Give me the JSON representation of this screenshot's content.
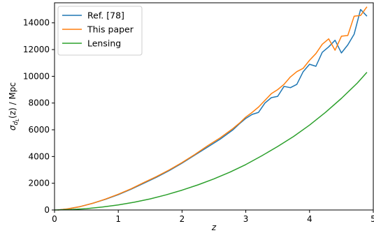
{
  "chart_data": {
    "type": "line",
    "title": "",
    "xlabel": "z",
    "ylabel_main": "σ",
    "ylabel_sub": "d",
    "ylabel_subsub": "L",
    "ylabel_suffix": "(z) / Mpc",
    "xlim": [
      0,
      5
    ],
    "ylim": [
      0,
      15500
    ],
    "xticks": [
      0,
      1,
      2,
      3,
      4,
      5
    ],
    "yticks": [
      0,
      2000,
      4000,
      6000,
      8000,
      10000,
      12000,
      14000
    ],
    "grid": false,
    "legend_position": "top-left",
    "series": [
      {
        "name": "Ref. [78]",
        "color": "#1f77b4",
        "x": [
          0.05,
          0.2,
          0.4,
          0.6,
          0.8,
          1.0,
          1.2,
          1.4,
          1.6,
          1.8,
          2.0,
          2.2,
          2.4,
          2.6,
          2.8,
          2.9,
          3.0,
          3.1,
          3.2,
          3.3,
          3.4,
          3.5,
          3.6,
          3.7,
          3.8,
          3.9,
          4.0,
          4.1,
          4.2,
          4.3,
          4.4,
          4.5,
          4.6,
          4.7,
          4.8,
          4.9
        ],
        "y": [
          0,
          80,
          250,
          500,
          800,
          1150,
          1550,
          2000,
          2450,
          2950,
          3500,
          4100,
          4700,
          5300,
          6000,
          6450,
          6850,
          7150,
          7300,
          8000,
          8400,
          8500,
          9250,
          9150,
          9400,
          10350,
          10900,
          10750,
          11800,
          12200,
          12700,
          11750,
          12350,
          13150,
          15000,
          14500
        ]
      },
      {
        "name": "This paper",
        "color": "#ff7f0e",
        "x": [
          0.05,
          0.2,
          0.4,
          0.6,
          0.8,
          1.0,
          1.2,
          1.4,
          1.6,
          1.8,
          2.0,
          2.2,
          2.4,
          2.6,
          2.8,
          2.9,
          3.0,
          3.1,
          3.2,
          3.3,
          3.4,
          3.5,
          3.6,
          3.7,
          3.8,
          3.9,
          4.0,
          4.1,
          4.2,
          4.3,
          4.4,
          4.5,
          4.6,
          4.7,
          4.8,
          4.9
        ],
        "y": [
          0,
          80,
          250,
          500,
          820,
          1180,
          1580,
          2050,
          2500,
          3000,
          3550,
          4150,
          4800,
          5400,
          6100,
          6500,
          6950,
          7300,
          7700,
          8200,
          8700,
          9000,
          9400,
          9950,
          10350,
          10600,
          11200,
          11700,
          12400,
          12800,
          11950,
          13000,
          13050,
          14500,
          14550,
          15200
        ]
      },
      {
        "name": "Lensing",
        "color": "#2ca02c",
        "x": [
          0,
          0.25,
          0.5,
          0.75,
          1.0,
          1.25,
          1.5,
          1.75,
          2.0,
          2.25,
          2.5,
          2.75,
          3.0,
          3.25,
          3.5,
          3.75,
          4.0,
          4.25,
          4.5,
          4.75,
          4.9
        ],
        "y": [
          0,
          30,
          100,
          220,
          380,
          580,
          830,
          1130,
          1480,
          1880,
          2330,
          2830,
          3400,
          4050,
          4750,
          5500,
          6350,
          7300,
          8350,
          9500,
          10300
        ]
      }
    ]
  }
}
